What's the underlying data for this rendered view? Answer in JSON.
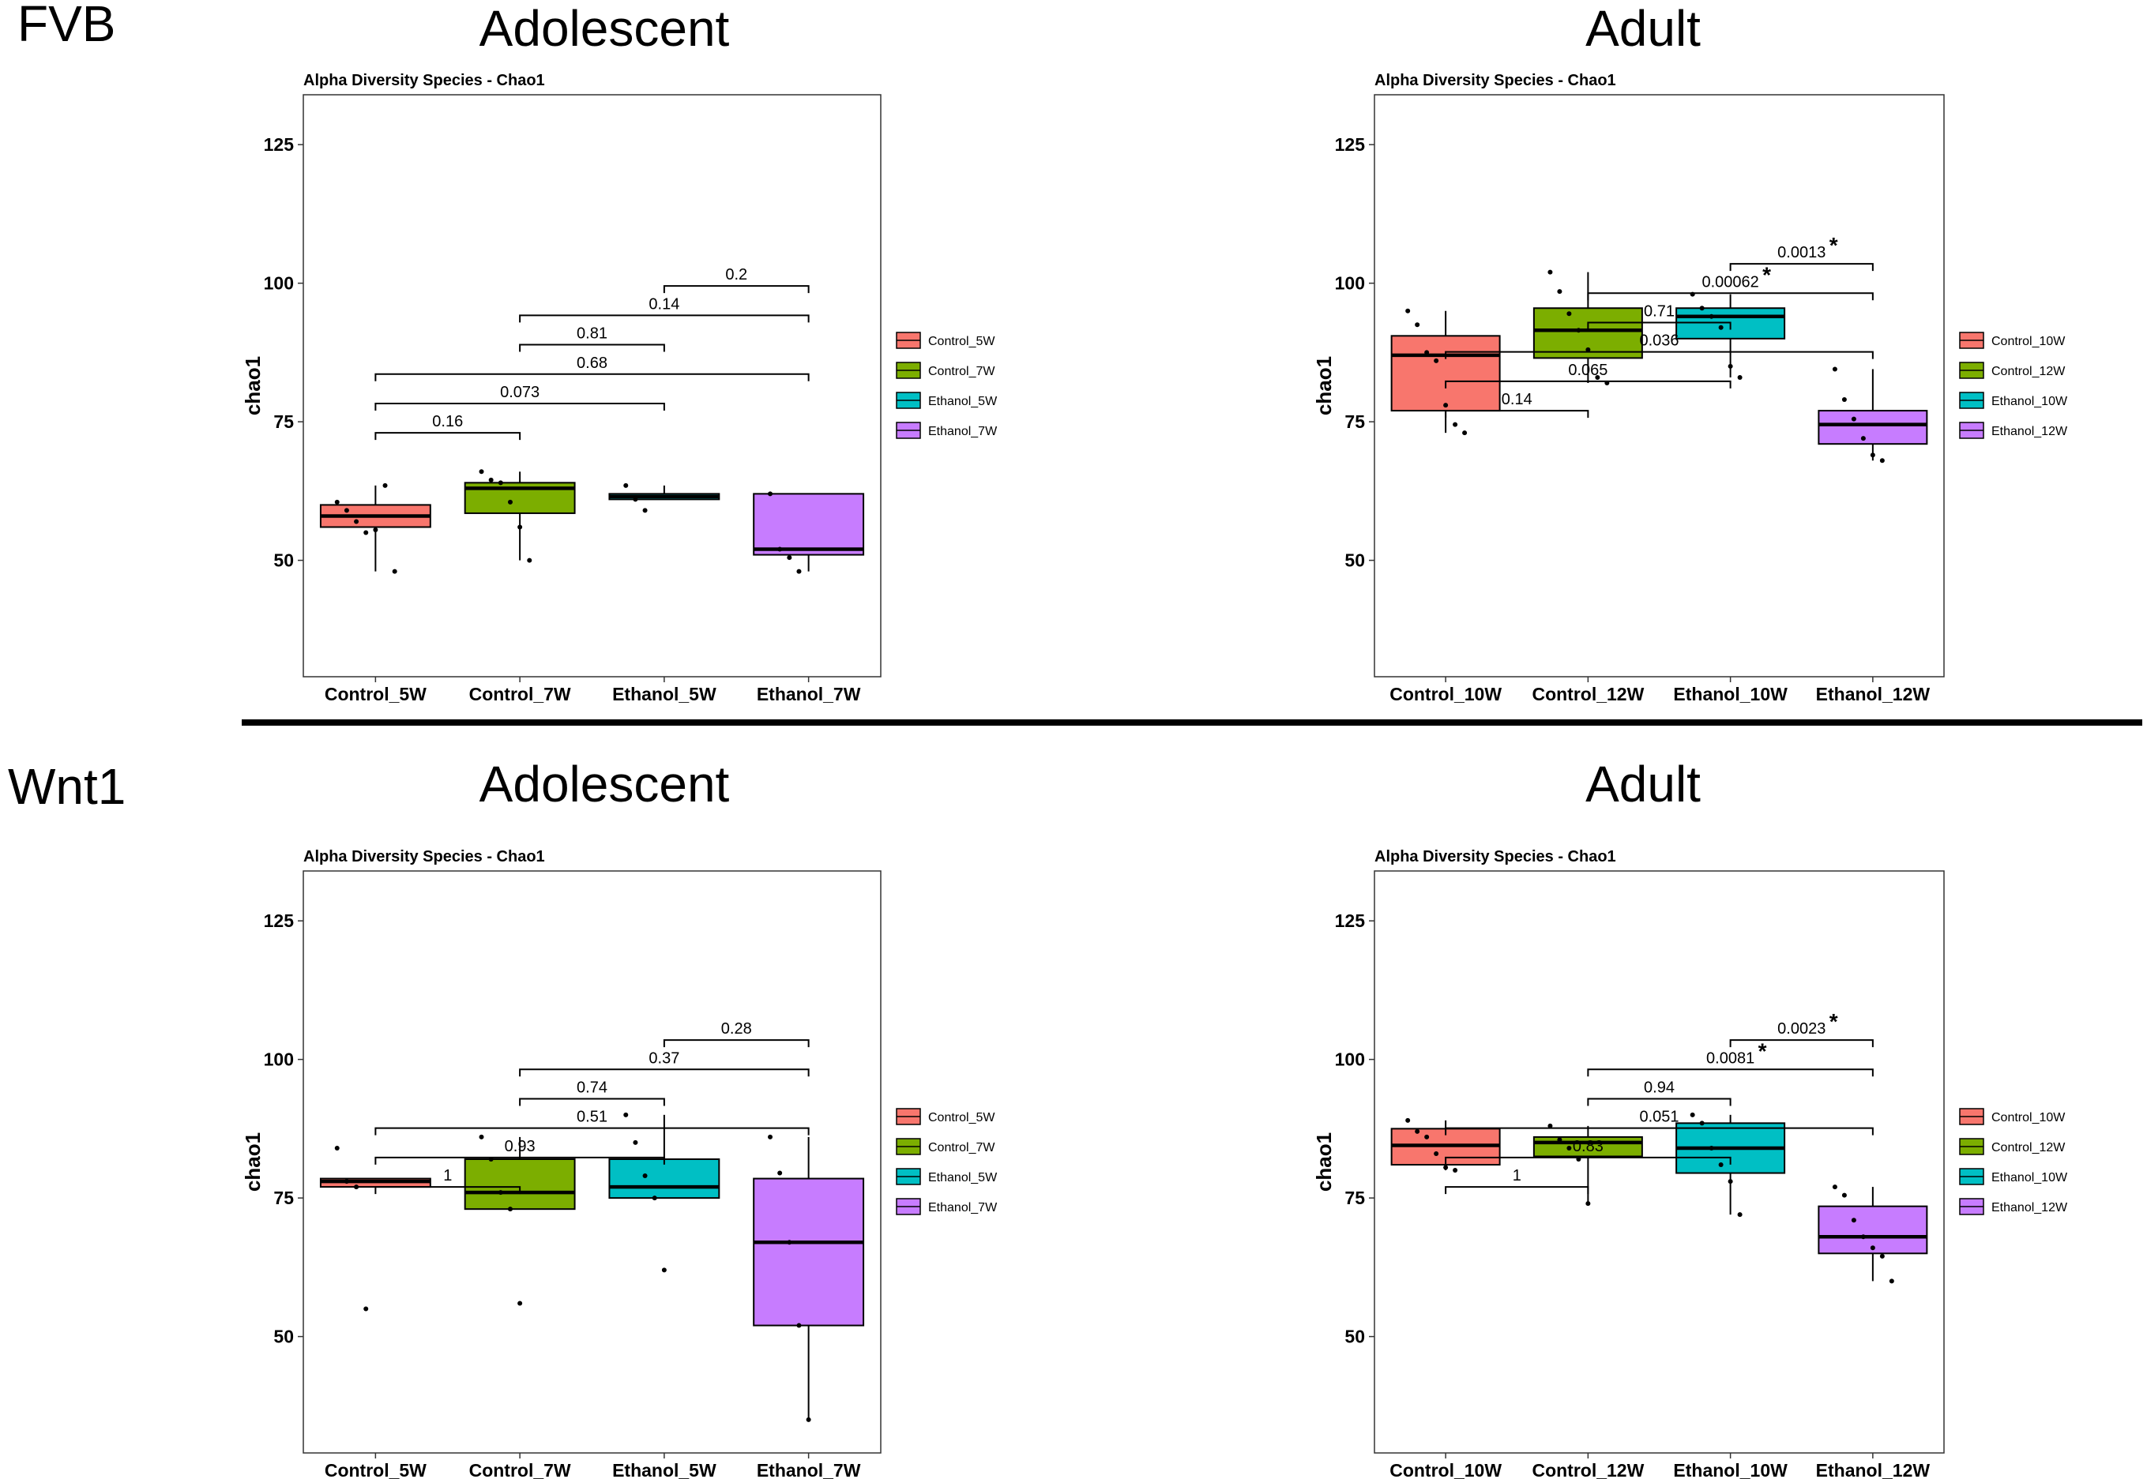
{
  "figure": {
    "row_labels": [
      "FVB",
      "Wnt1"
    ],
    "column_titles": [
      "Adolescent",
      "Adult"
    ]
  },
  "colors": {
    "series": [
      "#F8766D",
      "#7CAE00",
      "#00BFC4",
      "#C77CFF"
    ],
    "frame": "#333333",
    "text": "#000000",
    "separator": "#000000"
  },
  "chart_data": [
    {
      "id": "fvb-adolescent",
      "type": "boxplot",
      "title": "Alpha Diversity Species - Chao1",
      "xlabel": "",
      "ylabel": "chao1",
      "ylim": [
        29,
        134
      ],
      "yticks": [
        50,
        75,
        100,
        125
      ],
      "categories": [
        "Control_5W",
        "Control_7W",
        "Ethanol_5W",
        "Ethanol_7W"
      ],
      "legend": [
        "Control_5W",
        "Control_7W",
        "Ethanol_5W",
        "Ethanol_7W"
      ],
      "boxes": [
        {
          "min": 48,
          "q1": 56,
          "median": 58,
          "q3": 60,
          "max": 63.5,
          "points": [
            60.5,
            59,
            57,
            55,
            55.5,
            63.5,
            48
          ]
        },
        {
          "min": 50,
          "q1": 58.5,
          "median": 63,
          "q3": 64,
          "max": 66,
          "points": [
            66,
            64.5,
            64,
            60.5,
            56,
            50
          ]
        },
        {
          "min": 61,
          "q1": 61,
          "median": 61.5,
          "q3": 62,
          "max": 63.5,
          "points": [
            63.5,
            61,
            59
          ]
        },
        {
          "min": 48,
          "q1": 51,
          "median": 52,
          "q3": 62,
          "max": 62,
          "points": [
            62,
            52,
            50.5,
            48
          ]
        }
      ],
      "comparisons": [
        {
          "from": 1,
          "to": 2,
          "label": "0.16",
          "star": ""
        },
        {
          "from": 1,
          "to": 3,
          "label": "0.073",
          "star": ""
        },
        {
          "from": 1,
          "to": 4,
          "label": "0.68",
          "star": ""
        },
        {
          "from": 2,
          "to": 3,
          "label": "0.81",
          "star": ""
        },
        {
          "from": 2,
          "to": 4,
          "label": "0.14",
          "star": ""
        },
        {
          "from": 3,
          "to": 4,
          "label": "0.2",
          "star": ""
        }
      ]
    },
    {
      "id": "fvb-adult",
      "type": "boxplot",
      "title": "Alpha Diversity Species - Chao1",
      "xlabel": "",
      "ylabel": "chao1",
      "ylim": [
        29,
        134
      ],
      "yticks": [
        50,
        75,
        100,
        125
      ],
      "categories": [
        "Control_10W",
        "Control_12W",
        "Ethanol_10W",
        "Ethanol_12W"
      ],
      "legend": [
        "Control_10W",
        "Control_12W",
        "Ethanol_10W",
        "Ethanol_12W"
      ],
      "boxes": [
        {
          "min": 73,
          "q1": 77,
          "median": 87,
          "q3": 90.5,
          "max": 95,
          "points": [
            95,
            92.5,
            87.5,
            86,
            78,
            74.5,
            73
          ]
        },
        {
          "min": 82,
          "q1": 86.5,
          "median": 91.5,
          "q3": 95.5,
          "max": 102,
          "points": [
            102,
            98.5,
            94.5,
            91.5,
            88,
            83,
            82
          ]
        },
        {
          "min": 83,
          "q1": 90,
          "median": 94,
          "q3": 95.5,
          "max": 98,
          "points": [
            98,
            95.5,
            94,
            92,
            85,
            83
          ]
        },
        {
          "min": 68,
          "q1": 71,
          "median": 74.5,
          "q3": 77,
          "max": 84.5,
          "points": [
            84.5,
            79,
            75.5,
            72,
            69,
            68
          ]
        }
      ],
      "comparisons": [
        {
          "from": 1,
          "to": 2,
          "label": "0.14",
          "star": ""
        },
        {
          "from": 1,
          "to": 3,
          "label": "0.065",
          "star": ""
        },
        {
          "from": 1,
          "to": 4,
          "label": "0.036",
          "star": ""
        },
        {
          "from": 2,
          "to": 3,
          "label": "0.71",
          "star": ""
        },
        {
          "from": 2,
          "to": 4,
          "label": "0.00062",
          "star": "*"
        },
        {
          "from": 3,
          "to": 4,
          "label": "0.0013",
          "star": "*"
        }
      ]
    },
    {
      "id": "wnt1-adolescent",
      "type": "boxplot",
      "title": "Alpha Diversity Species - Chao1",
      "xlabel": "",
      "ylabel": "chao1",
      "ylim": [
        29,
        134
      ],
      "yticks": [
        50,
        75,
        100,
        125
      ],
      "categories": [
        "Control_5W",
        "Control_7W",
        "Ethanol_5W",
        "Ethanol_7W"
      ],
      "legend": [
        "Control_5W",
        "Control_7W",
        "Ethanol_5W",
        "Ethanol_7W"
      ],
      "boxes": [
        {
          "min": 77,
          "q1": 77,
          "median": 78,
          "q3": 78.5,
          "max": 78.5,
          "points": [
            84,
            78,
            77,
            55
          ]
        },
        {
          "min": 73,
          "q1": 73,
          "median": 76,
          "q3": 82,
          "max": 86,
          "points": [
            86,
            82,
            76,
            73,
            56
          ]
        },
        {
          "min": 75,
          "q1": 75,
          "median": 77,
          "q3": 82,
          "max": 90,
          "points": [
            90,
            85,
            79,
            75,
            62
          ]
        },
        {
          "min": 35,
          "q1": 52,
          "median": 67,
          "q3": 78.5,
          "max": 86,
          "points": [
            86,
            79.5,
            67,
            52,
            35
          ]
        }
      ],
      "comparisons": [
        {
          "from": 1,
          "to": 2,
          "label": "1",
          "star": ""
        },
        {
          "from": 1,
          "to": 3,
          "label": "0.93",
          "star": ""
        },
        {
          "from": 1,
          "to": 4,
          "label": "0.51",
          "star": ""
        },
        {
          "from": 2,
          "to": 3,
          "label": "0.74",
          "star": ""
        },
        {
          "from": 2,
          "to": 4,
          "label": "0.37",
          "star": ""
        },
        {
          "from": 3,
          "to": 4,
          "label": "0.28",
          "star": ""
        }
      ]
    },
    {
      "id": "wnt1-adult",
      "type": "boxplot",
      "title": "Alpha Diversity Species - Chao1",
      "xlabel": "",
      "ylabel": "chao1",
      "ylim": [
        29,
        134
      ],
      "yticks": [
        50,
        75,
        100,
        125
      ],
      "categories": [
        "Control_10W",
        "Control_12W",
        "Ethanol_10W",
        "Ethanol_12W"
      ],
      "legend": [
        "Control_10W",
        "Control_12W",
        "Ethanol_10W",
        "Ethanol_12W"
      ],
      "boxes": [
        {
          "min": 80,
          "q1": 81,
          "median": 84.5,
          "q3": 87.5,
          "max": 89,
          "points": [
            89,
            87,
            86,
            83,
            80.5,
            80
          ]
        },
        {
          "min": 74,
          "q1": 82.5,
          "median": 85,
          "q3": 86,
          "max": 88,
          "points": [
            88,
            85.5,
            84,
            82,
            74
          ]
        },
        {
          "min": 72,
          "q1": 79.5,
          "median": 84,
          "q3": 88.5,
          "max": 90,
          "points": [
            90,
            88.5,
            84,
            81,
            78,
            72
          ]
        },
        {
          "min": 60,
          "q1": 65,
          "median": 68,
          "q3": 73.5,
          "max": 77,
          "points": [
            77,
            75.5,
            71,
            68,
            66,
            64.5,
            60
          ]
        }
      ],
      "comparisons": [
        {
          "from": 1,
          "to": 2,
          "label": "1",
          "star": ""
        },
        {
          "from": 1,
          "to": 3,
          "label": "0.83",
          "star": ""
        },
        {
          "from": 1,
          "to": 4,
          "label": "0.051",
          "star": ""
        },
        {
          "from": 2,
          "to": 3,
          "label": "0.94",
          "star": ""
        },
        {
          "from": 2,
          "to": 4,
          "label": "0.0081",
          "star": "*"
        },
        {
          "from": 3,
          "to": 4,
          "label": "0.0023",
          "star": "*"
        }
      ]
    }
  ]
}
